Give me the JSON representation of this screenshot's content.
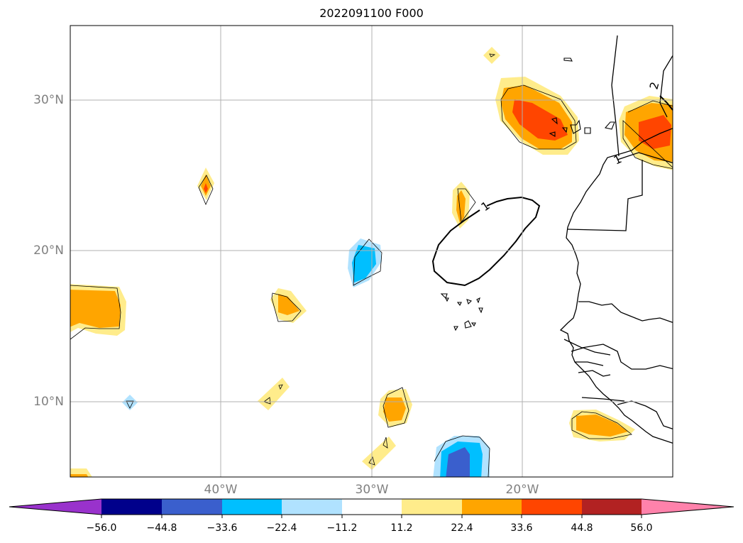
{
  "title": "2022091100 F000",
  "lat_labels": [
    "30°N",
    "20°N",
    "10°N"
  ],
  "lon_labels": [
    "40°W",
    "30°W",
    "20°W"
  ],
  "contour_labels": [
    "1",
    "2",
    "1"
  ],
  "colorbar": {
    "ticks": [
      "−56.0",
      "−44.8",
      "−33.6",
      "−22.4",
      "−11.2",
      "11.2",
      "22.4",
      "33.6",
      "44.8",
      "56.0"
    ],
    "colors": [
      "#9932CC",
      "#00008B",
      "#3A5FCD",
      "#00BFFF",
      "#B0E2FF",
      "#FFFFFF",
      "#FFEC8B",
      "#FFA500",
      "#FF4500",
      "#B22222",
      "#FF82AB"
    ]
  },
  "colors": {
    "light_yellow": "#FFEC8B",
    "orange": "#FFA500",
    "red_orange": "#FF4500",
    "light_blue": "#B0E2FF",
    "deep_sky_blue": "#00BFFF",
    "royal_blue": "#3A5FCD",
    "grid": "#b0b0b0",
    "label_gray": "#808080"
  }
}
